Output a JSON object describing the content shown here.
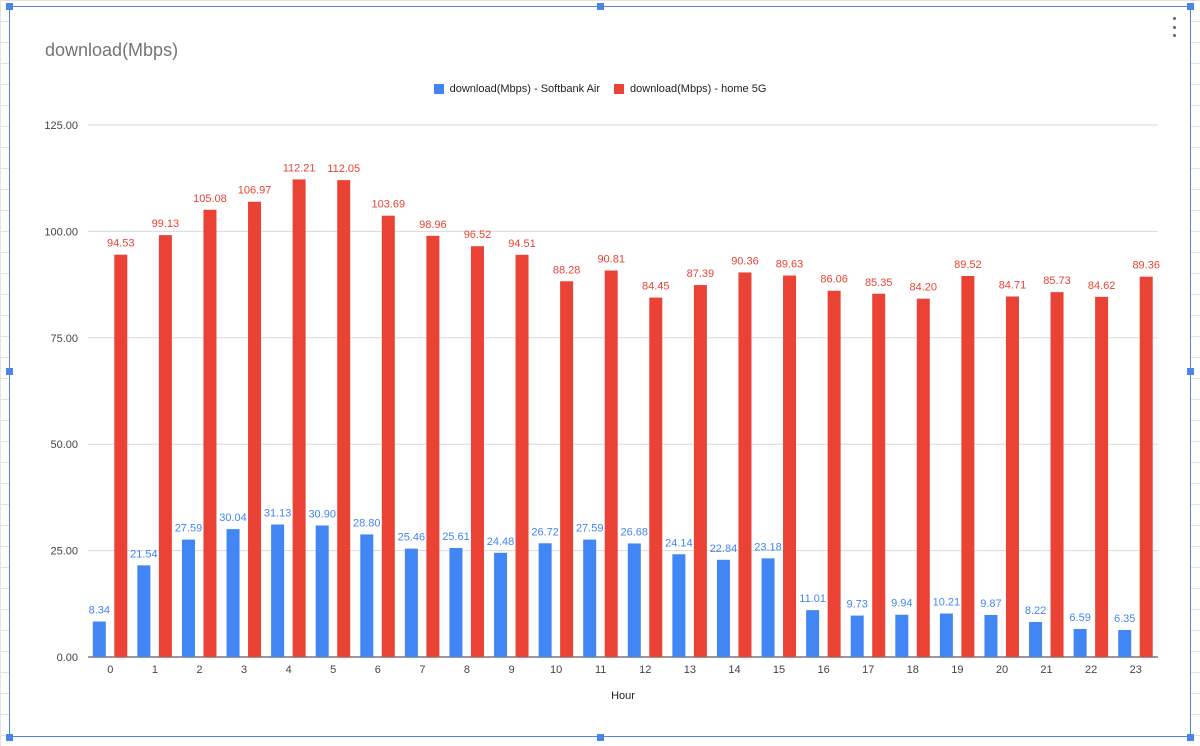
{
  "chart_data": {
    "type": "bar",
    "title": "download(Mbps)",
    "xlabel": "Hour",
    "ylabel": "",
    "ylim": [
      0,
      125
    ],
    "yticks": [
      "0.00",
      "25.00",
      "50.00",
      "75.00",
      "100.00",
      "125.00"
    ],
    "ytick_values": [
      0,
      25,
      50,
      75,
      100,
      125
    ],
    "grid": true,
    "legend_position": "top-center",
    "categories": [
      "0",
      "1",
      "2",
      "3",
      "4",
      "5",
      "6",
      "7",
      "8",
      "9",
      "10",
      "11",
      "12",
      "13",
      "14",
      "15",
      "16",
      "17",
      "18",
      "19",
      "20",
      "21",
      "22",
      "23"
    ],
    "series": [
      {
        "name": "download(Mbps) - Softbank Air",
        "color": "#4285f4",
        "values": [
          8.34,
          21.54,
          27.59,
          30.04,
          31.13,
          30.9,
          28.8,
          25.46,
          25.61,
          24.48,
          26.72,
          27.59,
          26.68,
          24.14,
          22.84,
          23.18,
          11.01,
          9.73,
          9.94,
          10.21,
          9.87,
          8.22,
          6.59,
          6.35
        ],
        "labels": [
          "8.34",
          "21.54",
          "27.59",
          "30.04",
          "31.13",
          "30.90",
          "28.80",
          "25.46",
          "25.61",
          "24.48",
          "26.72",
          "27.59",
          "26.68",
          "24.14",
          "22.84",
          "23.18",
          "11.01",
          "9.73",
          "9.94",
          "10.21",
          "9.87",
          "8.22",
          "6.59",
          "6.35"
        ]
      },
      {
        "name": "download(Mbps) - home 5G",
        "color": "#ea4335",
        "values": [
          94.53,
          99.13,
          105.08,
          106.97,
          112.21,
          112.05,
          103.69,
          98.96,
          96.52,
          94.51,
          88.28,
          90.81,
          84.45,
          87.39,
          90.36,
          89.63,
          86.06,
          85.35,
          84.2,
          89.52,
          84.71,
          85.73,
          84.62,
          89.36
        ],
        "labels": [
          "94.53",
          "99.13",
          "105.08",
          "106.97",
          "112.21",
          "112.05",
          "103.69",
          "98.96",
          "96.52",
          "94.51",
          "88.28",
          "90.81",
          "84.45",
          "87.39",
          "90.36",
          "89.63",
          "86.06",
          "85.35",
          "84.20",
          "89.52",
          "84.71",
          "85.73",
          "84.62",
          "89.36"
        ]
      }
    ]
  }
}
